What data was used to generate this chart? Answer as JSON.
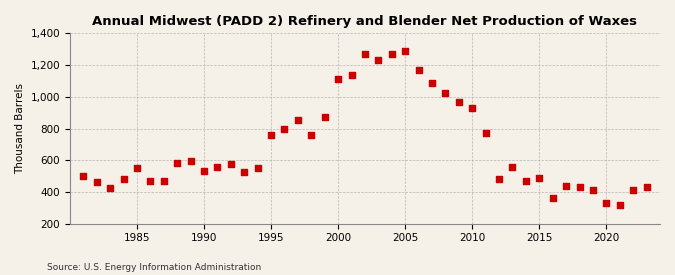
{
  "title": "Annual Midwest (PADD 2) Refinery and Blender Net Production of Waxes",
  "ylabel": "Thousand Barrels",
  "source": "Source: U.S. Energy Information Administration",
  "background_color": "#f5f0e8",
  "marker_color": "#cc0000",
  "years": [
    1981,
    1982,
    1983,
    1984,
    1985,
    1986,
    1987,
    1988,
    1989,
    1990,
    1991,
    1992,
    1993,
    1994,
    1995,
    1996,
    1997,
    1998,
    1999,
    2000,
    2001,
    2002,
    2003,
    2004,
    2005,
    2006,
    2007,
    2008,
    2009,
    2010,
    2011,
    2012,
    2013,
    2014,
    2015,
    2016,
    2017,
    2018,
    2019,
    2020,
    2021,
    2022,
    2023
  ],
  "values": [
    500,
    465,
    425,
    480,
    550,
    470,
    470,
    580,
    595,
    530,
    555,
    575,
    525,
    550,
    760,
    800,
    855,
    760,
    870,
    1110,
    1140,
    1270,
    1230,
    1270,
    1290,
    1170,
    1085,
    1025,
    965,
    930,
    770,
    480,
    560,
    470,
    490,
    360,
    435,
    430,
    410,
    330,
    320,
    415,
    430
  ],
  "ylim": [
    200,
    1400
  ],
  "yticks": [
    200,
    400,
    600,
    800,
    1000,
    1200,
    1400
  ],
  "xticks": [
    1985,
    1990,
    1995,
    2000,
    2005,
    2010,
    2015,
    2020
  ],
  "xlim": [
    1980,
    2024
  ]
}
